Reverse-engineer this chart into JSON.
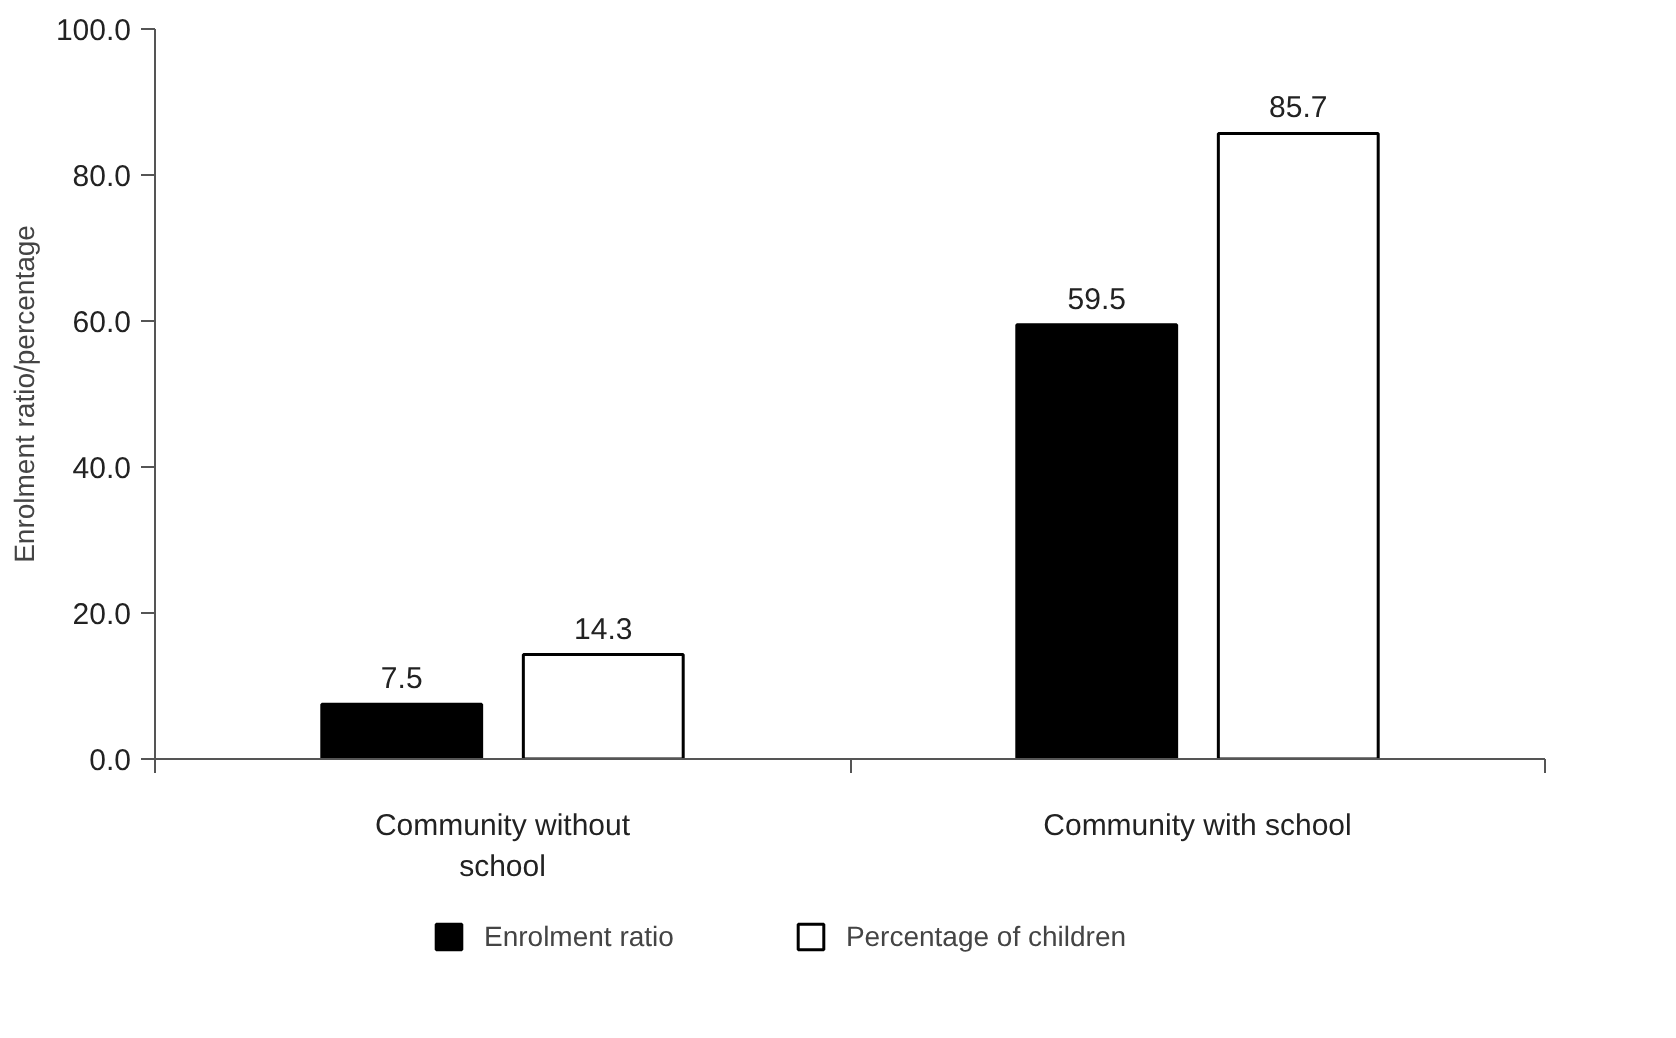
{
  "chart_data": {
    "type": "bar",
    "ylabel": "Enrolment ratio/percentage",
    "categories": [
      "Community without school",
      "Community with school"
    ],
    "series": [
      {
        "name": "Enrolment ratio",
        "color": "#000000",
        "values": [
          7.5,
          59.5
        ]
      },
      {
        "name": "Percentage of children",
        "color": "#ffffff",
        "values": [
          14.3,
          85.7
        ]
      }
    ],
    "ylim": [
      0,
      100
    ],
    "yticks": [
      {
        "value": 0,
        "label": "0.0"
      },
      {
        "value": 20,
        "label": "20.0"
      },
      {
        "value": 40,
        "label": "40.0"
      },
      {
        "value": 60,
        "label": "60.0"
      },
      {
        "value": 80,
        "label": "80.0"
      },
      {
        "value": 100,
        "label": "100.0"
      }
    ],
    "data_labels": true,
    "legend": "bottom",
    "grid": false
  }
}
